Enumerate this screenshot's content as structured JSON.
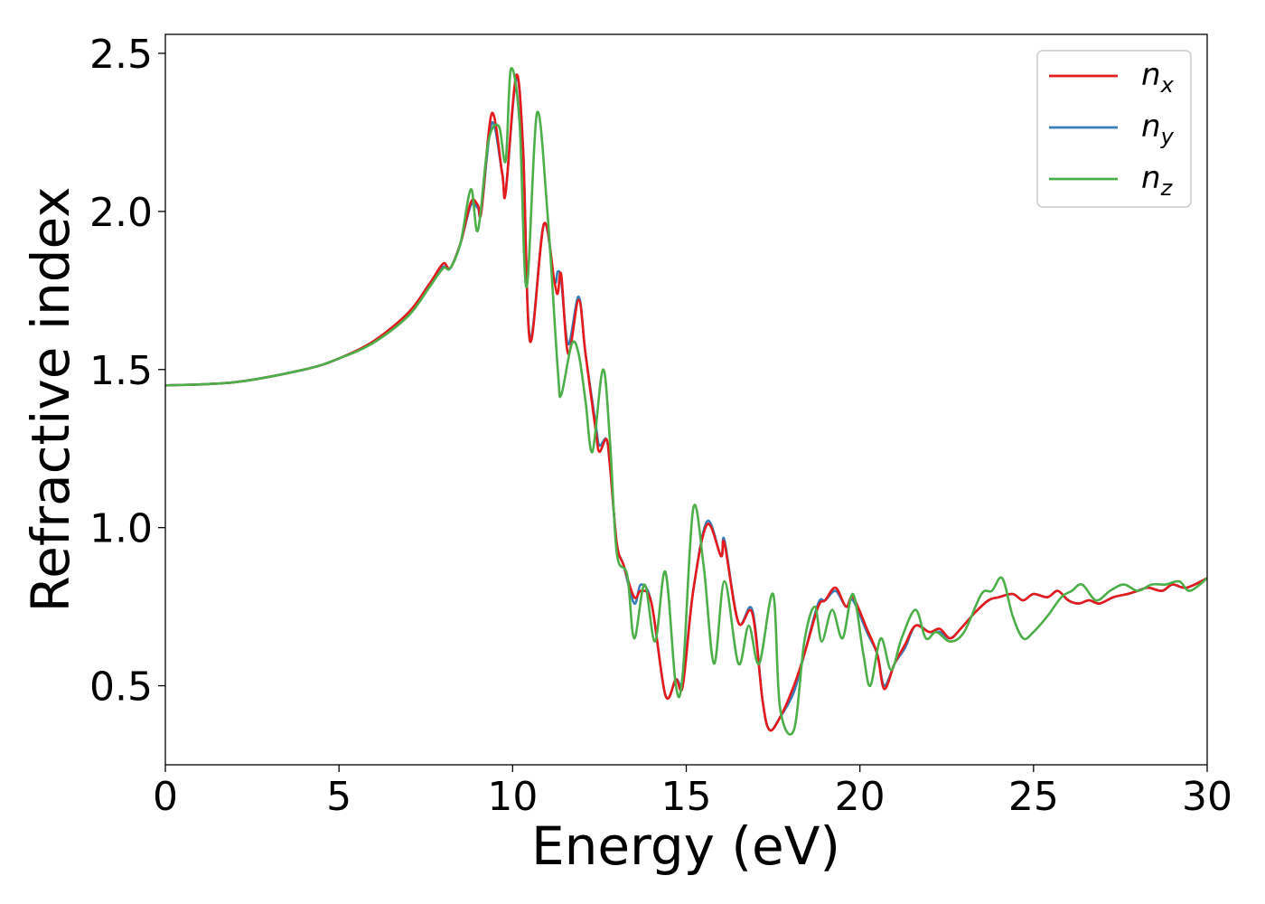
{
  "chart_data": {
    "type": "line",
    "title": "",
    "xlabel": "Energy (eV)",
    "ylabel": "Refractive index",
    "xlim": [
      0,
      30
    ],
    "ylim": [
      0.25,
      2.56
    ],
    "xticks": [
      0,
      5,
      10,
      15,
      20,
      25,
      30
    ],
    "xtick_labels": [
      "0",
      "5",
      "10",
      "15",
      "20",
      "25",
      "30"
    ],
    "yticks": [
      0.5,
      1.0,
      1.5,
      2.0,
      2.5
    ],
    "ytick_labels": [
      "0.5",
      "1.0",
      "1.5",
      "2.0",
      "2.5"
    ],
    "grid": false,
    "legend_position": "top-right",
    "series": [
      {
        "name": "nx",
        "base": "n",
        "sub": "x",
        "color": "#e41a1c",
        "points": [
          [
            0,
            1.45
          ],
          [
            2,
            1.46
          ],
          [
            4,
            1.5
          ],
          [
            5,
            1.535
          ],
          [
            6,
            1.59
          ],
          [
            7,
            1.68
          ],
          [
            7.6,
            1.77
          ],
          [
            8,
            1.835
          ],
          [
            8.2,
            1.82
          ],
          [
            8.5,
            1.9
          ],
          [
            8.8,
            2.03
          ],
          [
            9.0,
            2.02
          ],
          [
            9.1,
            2.0
          ],
          [
            9.4,
            2.31
          ],
          [
            9.7,
            2.12
          ],
          [
            9.8,
            2.06
          ],
          [
            10.1,
            2.43
          ],
          [
            10.3,
            2.2
          ],
          [
            10.5,
            1.59
          ],
          [
            10.9,
            1.96
          ],
          [
            11.2,
            1.78
          ],
          [
            11.3,
            1.74
          ],
          [
            11.4,
            1.8
          ],
          [
            11.6,
            1.55
          ],
          [
            11.9,
            1.72
          ],
          [
            12.1,
            1.55
          ],
          [
            12.4,
            1.3
          ],
          [
            12.5,
            1.24
          ],
          [
            12.7,
            1.28
          ],
          [
            12.8,
            1.2
          ],
          [
            13.0,
            0.95
          ],
          [
            13.2,
            0.88
          ],
          [
            13.5,
            0.78
          ],
          [
            13.7,
            0.8
          ],
          [
            14.0,
            0.76
          ],
          [
            14.4,
            0.47
          ],
          [
            14.7,
            0.52
          ],
          [
            14.9,
            0.5
          ],
          [
            15.2,
            0.8
          ],
          [
            15.6,
            1.01
          ],
          [
            16.0,
            0.91
          ],
          [
            16.1,
            0.95
          ],
          [
            16.5,
            0.7
          ],
          [
            16.9,
            0.73
          ],
          [
            17.2,
            0.45
          ],
          [
            17.4,
            0.36
          ],
          [
            17.7,
            0.4
          ],
          [
            18.1,
            0.5
          ],
          [
            18.4,
            0.6
          ],
          [
            18.8,
            0.75
          ],
          [
            19.0,
            0.77
          ],
          [
            19.3,
            0.81
          ],
          [
            19.6,
            0.75
          ],
          [
            19.8,
            0.78
          ],
          [
            20.2,
            0.68
          ],
          [
            20.5,
            0.6
          ],
          [
            20.7,
            0.49
          ],
          [
            21.0,
            0.57
          ],
          [
            21.3,
            0.63
          ],
          [
            21.6,
            0.69
          ],
          [
            22.0,
            0.67
          ],
          [
            22.3,
            0.68
          ],
          [
            22.6,
            0.65
          ],
          [
            22.9,
            0.68
          ],
          [
            23.3,
            0.73
          ],
          [
            23.7,
            0.77
          ],
          [
            24.0,
            0.78
          ],
          [
            24.4,
            0.79
          ],
          [
            24.7,
            0.77
          ],
          [
            25.0,
            0.79
          ],
          [
            25.4,
            0.78
          ],
          [
            25.7,
            0.8
          ],
          [
            26.0,
            0.77
          ],
          [
            26.3,
            0.76
          ],
          [
            26.6,
            0.77
          ],
          [
            26.9,
            0.76
          ],
          [
            27.3,
            0.78
          ],
          [
            27.7,
            0.79
          ],
          [
            28.0,
            0.8
          ],
          [
            28.3,
            0.81
          ],
          [
            28.7,
            0.8
          ],
          [
            29.0,
            0.82
          ],
          [
            29.4,
            0.81
          ],
          [
            30,
            0.84
          ]
        ]
      },
      {
        "name": "ny",
        "base": "n",
        "sub": "y",
        "color": "#377eb8",
        "points": [
          [
            0,
            1.45
          ],
          [
            2,
            1.46
          ],
          [
            4,
            1.5
          ],
          [
            5,
            1.535
          ],
          [
            6,
            1.59
          ],
          [
            7,
            1.68
          ],
          [
            7.6,
            1.77
          ],
          [
            8,
            1.825
          ],
          [
            8.2,
            1.82
          ],
          [
            8.5,
            1.9
          ],
          [
            8.8,
            2.02
          ],
          [
            9.0,
            2.01
          ],
          [
            9.1,
            2.0
          ],
          [
            9.4,
            2.28
          ],
          [
            9.7,
            2.12
          ],
          [
            9.8,
            2.06
          ],
          [
            10.1,
            2.42
          ],
          [
            10.3,
            2.2
          ],
          [
            10.5,
            1.6
          ],
          [
            10.9,
            1.96
          ],
          [
            11.2,
            1.78
          ],
          [
            11.3,
            1.81
          ],
          [
            11.4,
            1.78
          ],
          [
            11.6,
            1.58
          ],
          [
            11.9,
            1.73
          ],
          [
            12.1,
            1.55
          ],
          [
            12.4,
            1.32
          ],
          [
            12.5,
            1.26
          ],
          [
            12.7,
            1.28
          ],
          [
            12.8,
            1.2
          ],
          [
            13.0,
            0.95
          ],
          [
            13.2,
            0.88
          ],
          [
            13.5,
            0.76
          ],
          [
            13.7,
            0.82
          ],
          [
            14.0,
            0.76
          ],
          [
            14.4,
            0.47
          ],
          [
            14.7,
            0.52
          ],
          [
            14.9,
            0.52
          ],
          [
            15.2,
            0.8
          ],
          [
            15.6,
            1.02
          ],
          [
            16.0,
            0.91
          ],
          [
            16.1,
            0.96
          ],
          [
            16.5,
            0.7
          ],
          [
            16.9,
            0.74
          ],
          [
            17.2,
            0.45
          ],
          [
            17.4,
            0.36
          ],
          [
            17.7,
            0.4
          ],
          [
            18.1,
            0.48
          ],
          [
            18.4,
            0.6
          ],
          [
            18.8,
            0.76
          ],
          [
            19.0,
            0.77
          ],
          [
            19.3,
            0.8
          ],
          [
            19.6,
            0.75
          ],
          [
            19.8,
            0.77
          ],
          [
            20.2,
            0.67
          ],
          [
            20.5,
            0.6
          ],
          [
            20.7,
            0.5
          ],
          [
            21.0,
            0.57
          ],
          [
            21.3,
            0.62
          ],
          [
            21.6,
            0.69
          ],
          [
            22.0,
            0.67
          ],
          [
            22.3,
            0.67
          ],
          [
            22.6,
            0.65
          ],
          [
            22.9,
            0.68
          ],
          [
            23.3,
            0.73
          ],
          [
            23.7,
            0.77
          ],
          [
            24.0,
            0.78
          ],
          [
            24.4,
            0.79
          ],
          [
            24.7,
            0.77
          ],
          [
            25.0,
            0.79
          ],
          [
            25.4,
            0.78
          ],
          [
            25.7,
            0.8
          ],
          [
            26.0,
            0.77
          ],
          [
            26.3,
            0.76
          ],
          [
            26.6,
            0.77
          ],
          [
            26.9,
            0.76
          ],
          [
            27.3,
            0.78
          ],
          [
            27.7,
            0.79
          ],
          [
            28.0,
            0.8
          ],
          [
            28.3,
            0.81
          ],
          [
            28.7,
            0.8
          ],
          [
            29.0,
            0.82
          ],
          [
            29.4,
            0.81
          ],
          [
            30,
            0.84
          ]
        ]
      },
      {
        "name": "nz",
        "base": "n",
        "sub": "z",
        "color": "#4daf4a",
        "points": [
          [
            0,
            1.45
          ],
          [
            2,
            1.46
          ],
          [
            4,
            1.5
          ],
          [
            5,
            1.535
          ],
          [
            6,
            1.585
          ],
          [
            7,
            1.67
          ],
          [
            7.6,
            1.76
          ],
          [
            8,
            1.82
          ],
          [
            8.2,
            1.82
          ],
          [
            8.5,
            1.9
          ],
          [
            8.8,
            2.07
          ],
          [
            9.0,
            1.94
          ],
          [
            9.3,
            2.22
          ],
          [
            9.6,
            2.27
          ],
          [
            9.8,
            2.16
          ],
          [
            9.95,
            2.45
          ],
          [
            10.2,
            2.28
          ],
          [
            10.4,
            1.76
          ],
          [
            10.7,
            2.31
          ],
          [
            11.0,
            2.0
          ],
          [
            11.3,
            1.5
          ],
          [
            11.4,
            1.42
          ],
          [
            11.7,
            1.58
          ],
          [
            11.9,
            1.55
          ],
          [
            12.1,
            1.4
          ],
          [
            12.3,
            1.24
          ],
          [
            12.6,
            1.5
          ],
          [
            12.8,
            1.28
          ],
          [
            13.0,
            0.92
          ],
          [
            13.3,
            0.85
          ],
          [
            13.5,
            0.65
          ],
          [
            13.8,
            0.82
          ],
          [
            14.1,
            0.64
          ],
          [
            14.4,
            0.86
          ],
          [
            14.7,
            0.5
          ],
          [
            14.9,
            0.54
          ],
          [
            15.2,
            1.06
          ],
          [
            15.5,
            0.88
          ],
          [
            15.8,
            0.57
          ],
          [
            16.1,
            0.83
          ],
          [
            16.5,
            0.57
          ],
          [
            16.8,
            0.69
          ],
          [
            17.1,
            0.57
          ],
          [
            17.5,
            0.79
          ],
          [
            17.7,
            0.43
          ],
          [
            18.1,
            0.36
          ],
          [
            18.4,
            0.64
          ],
          [
            18.7,
            0.75
          ],
          [
            18.9,
            0.64
          ],
          [
            19.2,
            0.74
          ],
          [
            19.5,
            0.65
          ],
          [
            19.8,
            0.79
          ],
          [
            20.1,
            0.6
          ],
          [
            20.3,
            0.5
          ],
          [
            20.6,
            0.65
          ],
          [
            20.9,
            0.55
          ],
          [
            21.2,
            0.65
          ],
          [
            21.6,
            0.74
          ],
          [
            21.9,
            0.65
          ],
          [
            22.2,
            0.67
          ],
          [
            22.6,
            0.64
          ],
          [
            23.0,
            0.67
          ],
          [
            23.5,
            0.79
          ],
          [
            23.8,
            0.8
          ],
          [
            24.1,
            0.84
          ],
          [
            24.4,
            0.72
          ],
          [
            24.7,
            0.65
          ],
          [
            25.0,
            0.67
          ],
          [
            25.4,
            0.72
          ],
          [
            25.8,
            0.78
          ],
          [
            26.1,
            0.8
          ],
          [
            26.4,
            0.82
          ],
          [
            26.8,
            0.77
          ],
          [
            27.2,
            0.8
          ],
          [
            27.6,
            0.82
          ],
          [
            28.0,
            0.8
          ],
          [
            28.4,
            0.82
          ],
          [
            28.8,
            0.82
          ],
          [
            29.2,
            0.83
          ],
          [
            29.5,
            0.8
          ],
          [
            30,
            0.84
          ]
        ]
      }
    ]
  }
}
